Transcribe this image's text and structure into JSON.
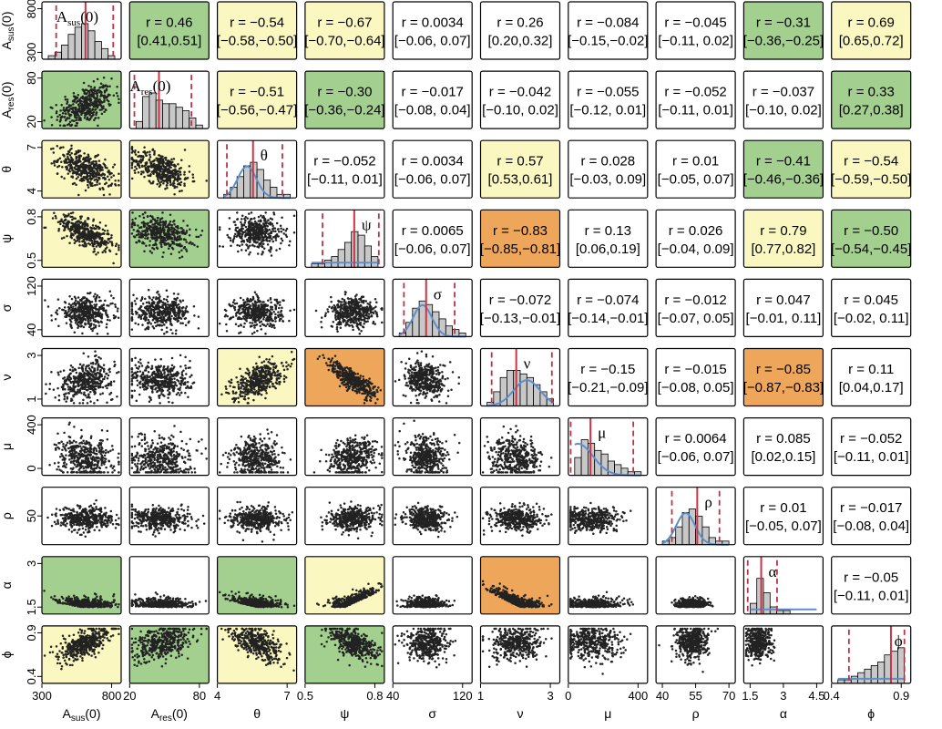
{
  "colors": {
    "weak": "#ffffff",
    "moderate_pos": "#fbf7c0",
    "moderate_neg": "#fbf7c0",
    "strong": "#a3cf8f",
    "very_strong": "#eea75a",
    "hist_fill": "#c8c8c8",
    "median_line": "#cc3344",
    "ci_line": "#bb3344",
    "prior_line": "#5b8fcc"
  },
  "chart_data": {
    "type": "scatter-matrix",
    "variables": [
      {
        "label": "A",
        "sub": "sus",
        "suffix": "(0)",
        "range": [
          300,
          900
        ],
        "ticks": [
          "300",
          "800"
        ],
        "xticks": [
          "300",
          "800"
        ],
        "hist": [
          1,
          2,
          4,
          7,
          9,
          10,
          8,
          5,
          3,
          1
        ],
        "median": 0.55,
        "ci": [
          0.18,
          0.9
        ],
        "prior": "none",
        "scatter": {
          "mean": 0.55,
          "sd": 0.17
        }
      },
      {
        "label": "A",
        "sub": "res",
        "suffix": "(0)",
        "range": [
          0,
          120
        ],
        "ticks": [
          "20",
          "80"
        ],
        "xticks": [
          "20",
          "80"
        ],
        "hist": [
          2,
          9,
          10,
          8,
          7,
          7,
          6,
          5,
          3,
          1
        ],
        "median": 0.37,
        "ci": [
          0.06,
          0.78
        ],
        "prior": "none",
        "scatter": {
          "mean": 0.4,
          "sd": 0.18
        }
      },
      {
        "label": "θ",
        "sub": "",
        "suffix": "",
        "range": [
          3.5,
          7.5
        ],
        "ticks": [
          "4",
          "7"
        ],
        "xticks": [
          "4",
          "7"
        ],
        "hist": [
          1,
          3,
          6,
          9,
          10,
          8,
          5,
          3,
          1,
          1
        ],
        "median": 0.45,
        "ci": [
          0.12,
          0.82
        ],
        "prior": "peak",
        "scatter": {
          "mean": 0.5,
          "sd": 0.16
        }
      },
      {
        "label": "ψ",
        "sub": "",
        "suffix": "",
        "range": [
          0.35,
          0.88
        ],
        "ticks": [
          "0.5",
          "0.8"
        ],
        "xticks": [
          "0.5",
          "0.8"
        ],
        "hist": [
          1,
          1,
          2,
          3,
          5,
          7,
          10,
          9,
          6,
          3
        ],
        "median": 0.62,
        "ci": [
          0.22,
          0.93
        ],
        "prior": "flat",
        "scatter": {
          "mean": 0.6,
          "sd": 0.15
        }
      },
      {
        "label": "σ",
        "sub": "",
        "suffix": "",
        "range": [
          30,
          140
        ],
        "ticks": [
          "40",
          "120"
        ],
        "xticks": [
          "40",
          "120"
        ],
        "hist": [
          1,
          4,
          8,
          10,
          9,
          7,
          5,
          3,
          2,
          1
        ],
        "median": 0.42,
        "ci": [
          0.14,
          0.78
        ],
        "prior": "peak",
        "scatter": {
          "mean": 0.42,
          "sd": 0.13
        }
      },
      {
        "label": "ν",
        "sub": "",
        "suffix": "",
        "range": [
          0.6,
          3.4
        ],
        "ticks": [
          "1",
          "3"
        ],
        "xticks": [
          "1",
          "3"
        ],
        "hist": [
          1,
          4,
          8,
          10,
          10,
          9,
          8,
          6,
          4,
          2
        ],
        "median": 0.45,
        "ci": [
          0.14,
          0.9
        ],
        "prior": "rise",
        "scatter": {
          "mean": 0.45,
          "sd": 0.16
        }
      },
      {
        "label": "μ",
        "sub": "",
        "suffix": "",
        "range": [
          0,
          400
        ],
        "ticks": [
          "0",
          "400"
        ],
        "xticks": [
          "0",
          "400"
        ],
        "hist": [
          5,
          10,
          9,
          7,
          6,
          4,
          3,
          2,
          1,
          1
        ],
        "median": 0.28,
        "ci": [
          0.03,
          0.82
        ],
        "prior": "decay",
        "scatter": {
          "mean": 0.3,
          "sd": 0.18
        }
      },
      {
        "label": "ρ",
        "sub": "",
        "suffix": "",
        "range": [
          30,
          80
        ],
        "ticks": [
          "50"
        ],
        "xticks": [
          "40",
          "55",
          "70"
        ],
        "hist": [
          1,
          2,
          5,
          9,
          10,
          8,
          5,
          2,
          1,
          1
        ],
        "median": 0.52,
        "ci": [
          0.2,
          0.8
        ],
        "prior": "peak",
        "scatter": {
          "mean": 0.45,
          "sd": 0.1
        }
      },
      {
        "label": "α",
        "sub": "",
        "suffix": "",
        "range": [
          1.0,
          4.0
        ],
        "ticks": [
          "1.5",
          "3"
        ],
        "xticks": [
          "1.5",
          "3",
          "4.5"
        ],
        "hist": [
          3,
          10,
          6,
          2,
          1,
          1,
          0,
          0,
          0,
          0
        ],
        "median": 0.22,
        "ci": [
          0.05,
          0.42
        ],
        "prior": "flat",
        "scatter": {
          "mean": 0.18,
          "sd": 0.08
        }
      },
      {
        "label": "ϕ",
        "sub": "",
        "suffix": "",
        "range": [
          0.35,
          1.0
        ],
        "ticks": [
          "0.4",
          "0.9"
        ],
        "xticks": [
          "0.4",
          "0.9"
        ],
        "hist": [
          1,
          1,
          2,
          3,
          4,
          5,
          6,
          8,
          9,
          10
        ],
        "median": 0.75,
        "ci": [
          0.22,
          0.92
        ],
        "prior": "flat",
        "scatter": {
          "mean": 0.7,
          "sd": 0.15
        }
      }
    ],
    "correlations": [
      {
        "i": 0,
        "j": 1,
        "r": "0.46",
        "ci": "[0.41,0.51]",
        "cls": "strong"
      },
      {
        "i": 0,
        "j": 2,
        "r": "−0.54",
        "ci": "[−0.58,−0.50]",
        "cls": "moderate_neg"
      },
      {
        "i": 0,
        "j": 3,
        "r": "−0.67",
        "ci": "[−0.70,−0.64]",
        "cls": "moderate_neg"
      },
      {
        "i": 0,
        "j": 4,
        "r": "0.0034",
        "ci": "[−0.06, 0.07]",
        "cls": "weak"
      },
      {
        "i": 0,
        "j": 5,
        "r": "0.26",
        "ci": "[0.20,0.32]",
        "cls": "weak"
      },
      {
        "i": 0,
        "j": 6,
        "r": "−0.084",
        "ci": "[−0.15,−0.02]",
        "cls": "weak"
      },
      {
        "i": 0,
        "j": 7,
        "r": "−0.045",
        "ci": "[−0.11, 0.02]",
        "cls": "weak"
      },
      {
        "i": 0,
        "j": 8,
        "r": "−0.31",
        "ci": "[−0.36,−0.25]",
        "cls": "strong"
      },
      {
        "i": 0,
        "j": 9,
        "r": "0.69",
        "ci": "[0.65,0.72]",
        "cls": "moderate_pos"
      },
      {
        "i": 1,
        "j": 2,
        "r": "−0.51",
        "ci": "[−0.56,−0.47]",
        "cls": "moderate_neg"
      },
      {
        "i": 1,
        "j": 3,
        "r": "−0.30",
        "ci": "[−0.36,−0.24]",
        "cls": "strong"
      },
      {
        "i": 1,
        "j": 4,
        "r": "−0.017",
        "ci": "[−0.08, 0.04]",
        "cls": "weak"
      },
      {
        "i": 1,
        "j": 5,
        "r": "−0.042",
        "ci": "[−0.10, 0.02]",
        "cls": "weak"
      },
      {
        "i": 1,
        "j": 6,
        "r": "−0.055",
        "ci": "[−0.12, 0.01]",
        "cls": "weak"
      },
      {
        "i": 1,
        "j": 7,
        "r": "−0.052",
        "ci": "[−0.11, 0.01]",
        "cls": "weak"
      },
      {
        "i": 1,
        "j": 8,
        "r": "−0.037",
        "ci": "[−0.10, 0.02]",
        "cls": "weak"
      },
      {
        "i": 1,
        "j": 9,
        "r": "0.33",
        "ci": "[0.27,0.38]",
        "cls": "strong"
      },
      {
        "i": 2,
        "j": 3,
        "r": "−0.052",
        "ci": "[−0.11, 0.01]",
        "cls": "weak"
      },
      {
        "i": 2,
        "j": 4,
        "r": "0.0034",
        "ci": "[−0.06, 0.07]",
        "cls": "weak"
      },
      {
        "i": 2,
        "j": 5,
        "r": "0.57",
        "ci": "[0.53,0.61]",
        "cls": "moderate_pos"
      },
      {
        "i": 2,
        "j": 6,
        "r": "0.028",
        "ci": "[−0.03, 0.09]",
        "cls": "weak"
      },
      {
        "i": 2,
        "j": 7,
        "r": "0.01",
        "ci": "[−0.05, 0.07]",
        "cls": "weak"
      },
      {
        "i": 2,
        "j": 8,
        "r": "−0.41",
        "ci": "[−0.46,−0.36]",
        "cls": "strong"
      },
      {
        "i": 2,
        "j": 9,
        "r": "−0.54",
        "ci": "[−0.59,−0.50]",
        "cls": "moderate_neg"
      },
      {
        "i": 3,
        "j": 4,
        "r": "0.0065",
        "ci": "[−0.06, 0.07]",
        "cls": "weak"
      },
      {
        "i": 3,
        "j": 5,
        "r": "−0.83",
        "ci": "[−0.85,−0.81]",
        "cls": "very_strong"
      },
      {
        "i": 3,
        "j": 6,
        "r": "0.13",
        "ci": "[0.06,0.19]",
        "cls": "weak"
      },
      {
        "i": 3,
        "j": 7,
        "r": "0.026",
        "ci": "[−0.04, 0.09]",
        "cls": "weak"
      },
      {
        "i": 3,
        "j": 8,
        "r": "0.79",
        "ci": "[0.77,0.82]",
        "cls": "moderate_pos"
      },
      {
        "i": 3,
        "j": 9,
        "r": "−0.50",
        "ci": "[−0.54,−0.45]",
        "cls": "strong"
      },
      {
        "i": 4,
        "j": 5,
        "r": "−0.072",
        "ci": "[−0.13,−0.01]",
        "cls": "weak"
      },
      {
        "i": 4,
        "j": 6,
        "r": "−0.074",
        "ci": "[−0.14,−0.01]",
        "cls": "weak"
      },
      {
        "i": 4,
        "j": 7,
        "r": "−0.012",
        "ci": "[−0.07, 0.05]",
        "cls": "weak"
      },
      {
        "i": 4,
        "j": 8,
        "r": "0.047",
        "ci": "[−0.01, 0.11]",
        "cls": "weak"
      },
      {
        "i": 4,
        "j": 9,
        "r": "0.045",
        "ci": "[−0.02, 0.11]",
        "cls": "weak"
      },
      {
        "i": 5,
        "j": 6,
        "r": "−0.15",
        "ci": "[−0.21,−0.09]",
        "cls": "weak"
      },
      {
        "i": 5,
        "j": 7,
        "r": "−0.015",
        "ci": "[−0.08, 0.05]",
        "cls": "weak"
      },
      {
        "i": 5,
        "j": 8,
        "r": "−0.85",
        "ci": "[−0.87,−0.83]",
        "cls": "very_strong"
      },
      {
        "i": 5,
        "j": 9,
        "r": "0.11",
        "ci": "[0.04,0.17]",
        "cls": "weak"
      },
      {
        "i": 6,
        "j": 7,
        "r": "0.0064",
        "ci": "[−0.06, 0.07]",
        "cls": "weak"
      },
      {
        "i": 6,
        "j": 8,
        "r": "0.085",
        "ci": "[0.02,0.15]",
        "cls": "weak"
      },
      {
        "i": 6,
        "j": 9,
        "r": "−0.052",
        "ci": "[−0.11, 0.01]",
        "cls": "weak"
      },
      {
        "i": 7,
        "j": 8,
        "r": "0.01",
        "ci": "[−0.05, 0.07]",
        "cls": "weak"
      },
      {
        "i": 7,
        "j": 9,
        "r": "−0.017",
        "ci": "[−0.08, 0.04]",
        "cls": "weak"
      },
      {
        "i": 8,
        "j": 9,
        "r": "−0.05",
        "ci": "[−0.11, 0.01]",
        "cls": "weak"
      }
    ]
  }
}
